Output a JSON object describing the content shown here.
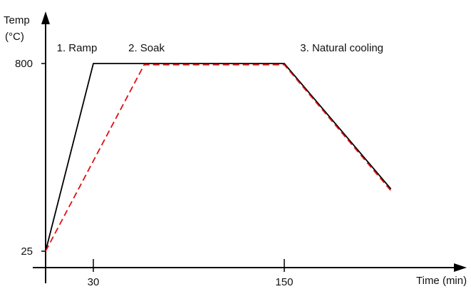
{
  "chart_data": {
    "type": "line",
    "xlabel": "Time (min)",
    "ylabel_line1": "Temp",
    "ylabel_line2": "(°C)",
    "x_ticks": [
      {
        "value": 30,
        "label": "30"
      },
      {
        "value": 150,
        "label": "150"
      }
    ],
    "y_ticks": [
      {
        "value": 25,
        "label": "25"
      },
      {
        "value": 800,
        "label": "800"
      }
    ],
    "annotations": [
      {
        "label": "1. Ramp",
        "x": 7,
        "y": 865
      },
      {
        "label": "2. Soak",
        "x": 52,
        "y": 865
      },
      {
        "label": "3. Natural cooling",
        "x": 160,
        "y": 865
      }
    ],
    "xlim": [
      0,
      270
    ],
    "ylim": [
      -30,
      1025
    ],
    "grid": false,
    "series": [
      {
        "color": "#000000",
        "dash": "solid",
        "points": [
          [
            0,
            25
          ],
          [
            30,
            800
          ],
          [
            150,
            800
          ],
          [
            217,
            282
          ]
        ]
      },
      {
        "color": "#e01010",
        "dash": "dashed",
        "points": [
          [
            0,
            25
          ],
          [
            62,
            795
          ],
          [
            150,
            795
          ],
          [
            217,
            275
          ]
        ]
      }
    ]
  }
}
